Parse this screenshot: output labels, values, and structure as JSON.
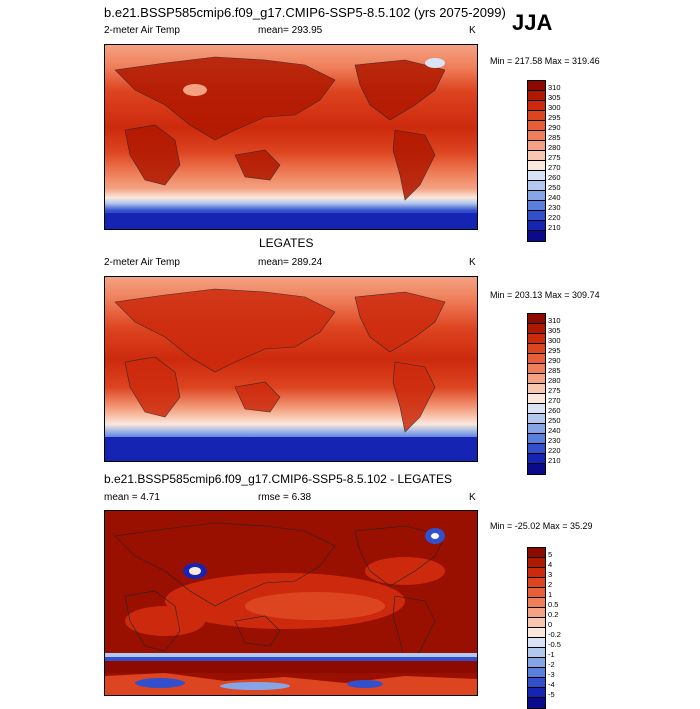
{
  "header": {
    "title": "b.e21.BSSP585cmip6.f09_g17.CMIP6-SSP5-8.5.102 (yrs 2075-2099)",
    "season": "JJA"
  },
  "panels": [
    {
      "title": "",
      "left_label": "2-meter Air Temp",
      "center_label": "mean= 293.95",
      "units": "K",
      "minmax": "Min = 217.58 Max = 319.46"
    },
    {
      "title": "LEGATES",
      "left_label": "2-meter Air Temp",
      "center_label": "mean= 289.24",
      "units": "K",
      "minmax": "Min = 203.13 Max = 309.74"
    },
    {
      "title": "b.e21.BSSP585cmip6.f09_g17.CMIP6-SSP5-8.5.102 - LEGATES",
      "left_label": "mean =   4.71",
      "center_label": "rmse =   6.38",
      "units": "K",
      "minmax": "Min = -25.02 Max =  35.29"
    }
  ],
  "colorbars": {
    "temperature": {
      "labels": [
        "310",
        "305",
        "300",
        "295",
        "290",
        "285",
        "280",
        "275",
        "270",
        "260",
        "250",
        "240",
        "230",
        "220",
        "210"
      ],
      "colors": [
        "#8c0a00",
        "#b01800",
        "#cd2a0d",
        "#dd4420",
        "#e85e38",
        "#ef7f5a",
        "#f4a283",
        "#f8c7b0",
        "#fbe8dc",
        "#d8e4f6",
        "#b2c8ee",
        "#86a5e6",
        "#5a7fdc",
        "#3350cc",
        "#1624b4",
        "#0a0a8c"
      ]
    },
    "difference": {
      "labels": [
        "5",
        "4",
        "3",
        "2",
        "1",
        "0.5",
        "0.2",
        "0",
        "-0.2",
        "-0.5",
        "-1",
        "-2",
        "-3",
        "-4",
        "-5"
      ],
      "colors": [
        "#8c0a00",
        "#b01800",
        "#cd2a0d",
        "#dd4420",
        "#e85e38",
        "#ef7f5a",
        "#f4a283",
        "#f8c7b0",
        "#fbe8dc",
        "#d8e4f6",
        "#b2c8ee",
        "#86a5e6",
        "#5a7fdc",
        "#3350cc",
        "#1624b4",
        "#0a0a8c"
      ]
    }
  }
}
